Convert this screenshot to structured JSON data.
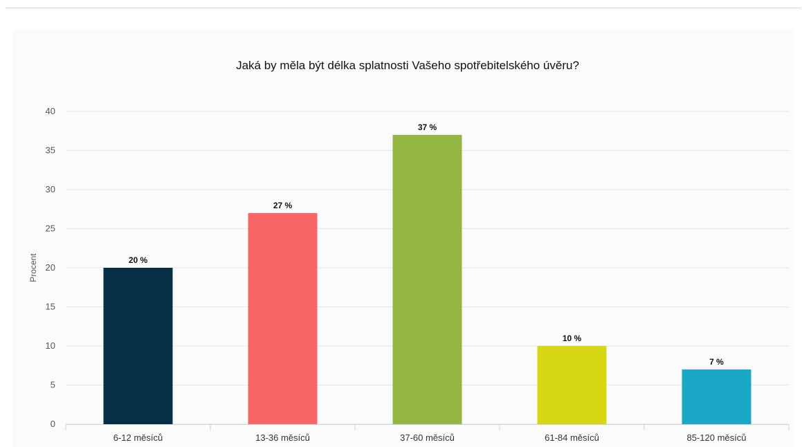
{
  "chart_data": {
    "type": "bar",
    "title": "Jaká by měla být délka splatnosti Vašeho spotřebitelského úvěru?",
    "xlabel": "",
    "ylabel": "Procent",
    "ylim": [
      0,
      40
    ],
    "yticks": [
      0,
      5,
      10,
      15,
      20,
      25,
      30,
      35,
      40
    ],
    "grid": true,
    "legend": "none",
    "categories": [
      "6-12 měsíců",
      "13-36 měsíců",
      "37-60 měsíců",
      "61-84 měsíců",
      "85-120 měsíců"
    ],
    "values": [
      20,
      27,
      37,
      10,
      7
    ],
    "data_labels": [
      "20 %",
      "27 %",
      "37 %",
      "10 %",
      "7 %"
    ],
    "colors": [
      "#062f45",
      "#f76666",
      "#93b742",
      "#d7d814",
      "#1ba8c6"
    ]
  }
}
